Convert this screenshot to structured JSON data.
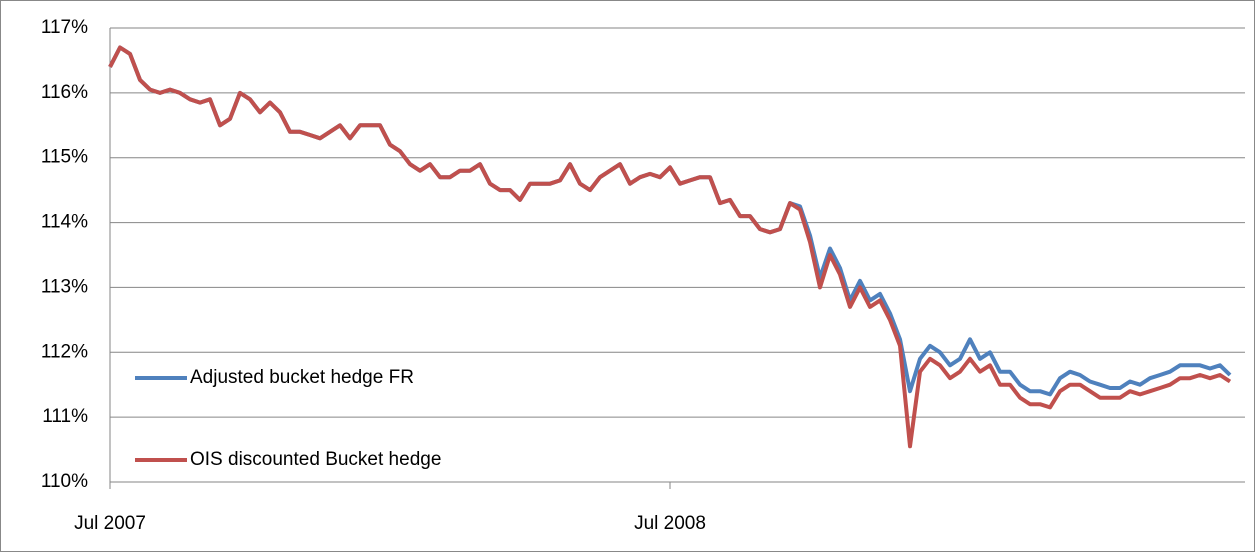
{
  "chart_data": {
    "type": "line",
    "categories": [
      "Jul 2007",
      null,
      null,
      null,
      null,
      null,
      null,
      null,
      null,
      null,
      null,
      null,
      null,
      null,
      null,
      null,
      null,
      null,
      null,
      null,
      null,
      null,
      null,
      null,
      null,
      null,
      null,
      null,
      null,
      null,
      null,
      null,
      null,
      null,
      null,
      null,
      null,
      null,
      null,
      null,
      null,
      null,
      null,
      null,
      null,
      null,
      null,
      null,
      null,
      null,
      null,
      null,
      null,
      null,
      null,
      null,
      "Jul 2008",
      null,
      null,
      null,
      null,
      null,
      null,
      null,
      null,
      null,
      null,
      null,
      null,
      null,
      null,
      null,
      null,
      null,
      null,
      null,
      null,
      null,
      null,
      null,
      null,
      null,
      null,
      null,
      null,
      null,
      null,
      null,
      null,
      null,
      null,
      null,
      null,
      null,
      null,
      null,
      null,
      null,
      null,
      null,
      null,
      null,
      null,
      null,
      null,
      null,
      null,
      null,
      null,
      null,
      null,
      null,
      null
    ],
    "series": [
      {
        "name": "Adjusted bucket hedge FR",
        "color": "#4f81bd",
        "values": [
          116.4,
          116.7,
          116.6,
          116.2,
          116.05,
          116.0,
          116.05,
          116.0,
          115.9,
          115.85,
          115.9,
          115.5,
          115.6,
          116.0,
          115.9,
          115.7,
          115.85,
          115.7,
          115.4,
          115.4,
          115.35,
          115.3,
          115.4,
          115.5,
          115.3,
          115.5,
          115.5,
          115.5,
          115.2,
          115.1,
          114.9,
          114.8,
          114.9,
          114.7,
          114.7,
          114.8,
          114.8,
          114.9,
          114.6,
          114.5,
          114.5,
          114.35,
          114.6,
          114.6,
          114.6,
          114.65,
          114.9,
          114.6,
          114.5,
          114.7,
          114.8,
          114.9,
          114.6,
          114.7,
          114.75,
          114.7,
          114.85,
          114.6,
          114.65,
          114.7,
          114.7,
          114.3,
          114.35,
          114.1,
          114.1,
          113.9,
          113.85,
          113.9,
          114.3,
          114.25,
          113.8,
          113.15,
          113.6,
          113.3,
          112.8,
          113.1,
          112.8,
          112.9,
          112.6,
          112.2,
          111.4,
          111.9,
          112.1,
          112.0,
          111.8,
          111.9,
          112.2,
          111.9,
          112.0,
          111.7,
          111.7,
          111.5,
          111.4,
          111.4,
          111.35,
          111.6,
          111.7,
          111.65,
          111.55,
          111.5,
          111.45,
          111.45,
          111.55,
          111.5,
          111.6,
          111.65,
          111.7,
          111.8,
          111.8,
          111.8,
          111.75,
          111.8,
          111.65
        ]
      },
      {
        "name": "OIS discounted Bucket hedge",
        "color": "#c0504d",
        "values": [
          116.4,
          116.7,
          116.6,
          116.2,
          116.05,
          116.0,
          116.05,
          116.0,
          115.9,
          115.85,
          115.9,
          115.5,
          115.6,
          116.0,
          115.9,
          115.7,
          115.85,
          115.7,
          115.4,
          115.4,
          115.35,
          115.3,
          115.4,
          115.5,
          115.3,
          115.5,
          115.5,
          115.5,
          115.2,
          115.1,
          114.9,
          114.8,
          114.9,
          114.7,
          114.7,
          114.8,
          114.8,
          114.9,
          114.6,
          114.5,
          114.5,
          114.35,
          114.6,
          114.6,
          114.6,
          114.65,
          114.9,
          114.6,
          114.5,
          114.7,
          114.8,
          114.9,
          114.6,
          114.7,
          114.75,
          114.7,
          114.85,
          114.6,
          114.65,
          114.7,
          114.7,
          114.3,
          114.35,
          114.1,
          114.1,
          113.9,
          113.85,
          113.9,
          114.3,
          114.2,
          113.7,
          113.0,
          113.5,
          113.2,
          112.7,
          113.0,
          112.7,
          112.8,
          112.5,
          112.1,
          110.55,
          111.7,
          111.9,
          111.8,
          111.6,
          111.7,
          111.9,
          111.7,
          111.8,
          111.5,
          111.5,
          111.3,
          111.2,
          111.2,
          111.15,
          111.4,
          111.5,
          111.5,
          111.4,
          111.3,
          111.3,
          111.3,
          111.4,
          111.35,
          111.4,
          111.45,
          111.5,
          111.6,
          111.6,
          111.65,
          111.6,
          111.65,
          111.55
        ]
      }
    ],
    "ylim": [
      110,
      117
    ],
    "yticks": [
      {
        "value": 110,
        "label": "110%"
      },
      {
        "value": 111,
        "label": "111%"
      },
      {
        "value": 112,
        "label": "112%"
      },
      {
        "value": 113,
        "label": "113%"
      },
      {
        "value": 114,
        "label": "114%"
      },
      {
        "value": 115,
        "label": "115%"
      },
      {
        "value": 116,
        "label": "116%"
      },
      {
        "value": 117,
        "label": "117%"
      }
    ],
    "grid": true,
    "legend": "lower left"
  }
}
